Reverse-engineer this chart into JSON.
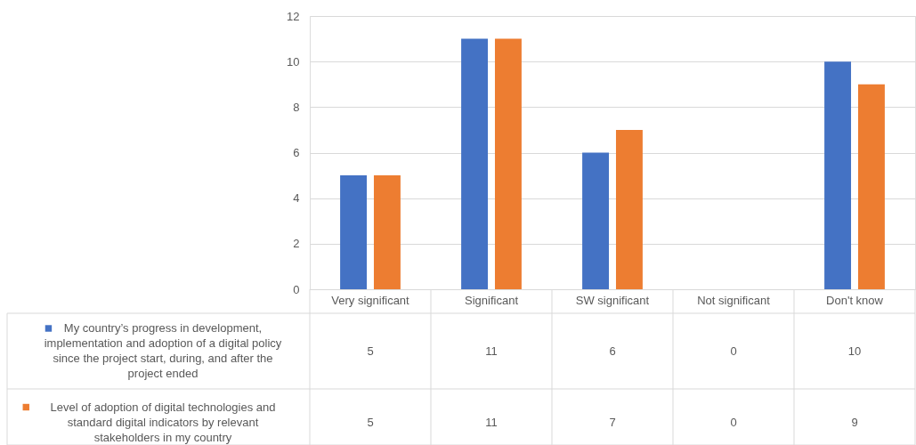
{
  "chart_data": {
    "type": "bar",
    "categories": [
      "Very significant",
      "Significant",
      "SW significant",
      "Not significant",
      "Don't know"
    ],
    "series": [
      {
        "name": "My country’s progress in development, implementation and adoption of a digital policy since the project start, during, and after the project ended",
        "color": "#4472c4",
        "values": [
          5,
          11,
          6,
          0,
          10
        ]
      },
      {
        "name": "Level of adoption of digital technologies and standard digital indicators by relevant stakeholders in my country",
        "color": "#ed7d31",
        "values": [
          5,
          11,
          7,
          0,
          9
        ]
      }
    ],
    "ylim": [
      0,
      12
    ],
    "yticks": [
      0,
      2,
      4,
      6,
      8,
      10,
      12
    ],
    "grid": "y",
    "legend": "bottom",
    "data_labels": true
  }
}
